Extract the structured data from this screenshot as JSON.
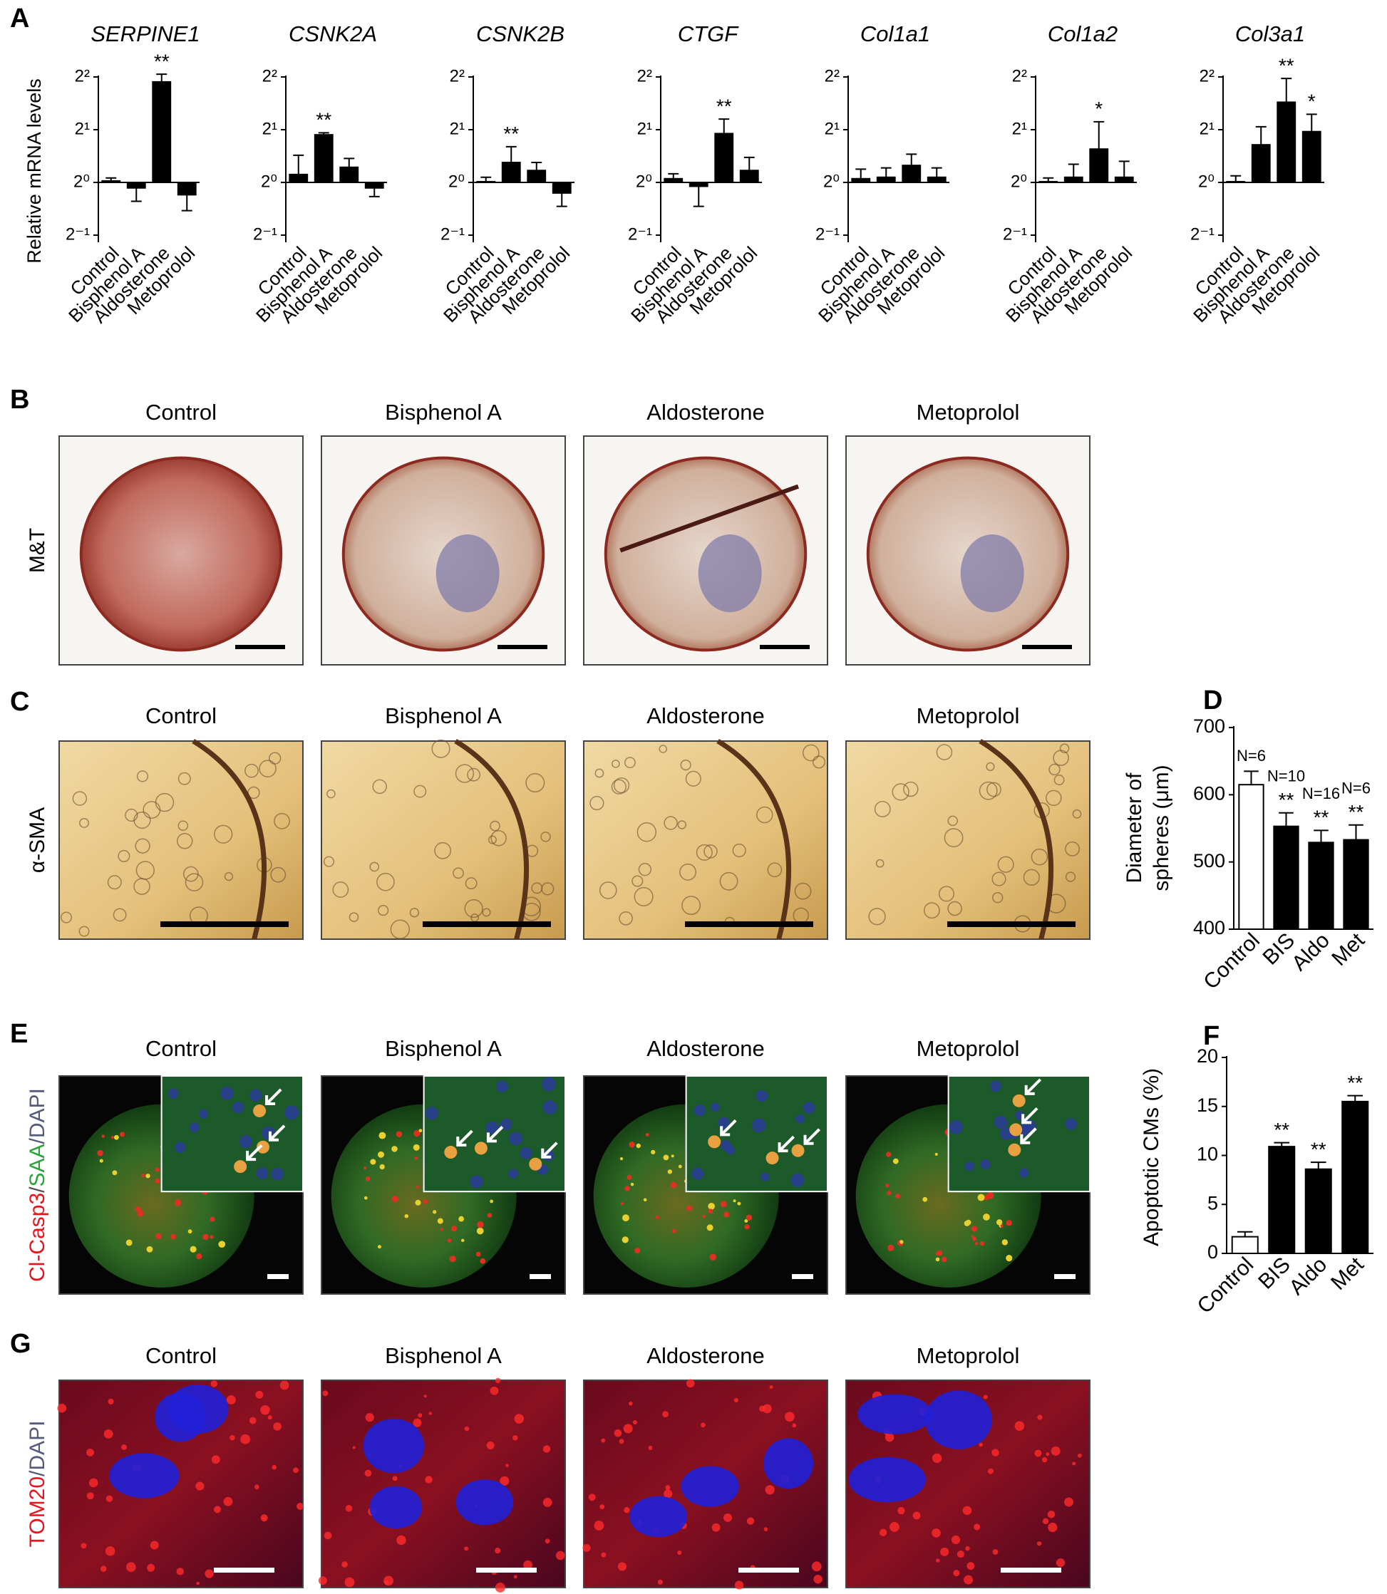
{
  "chart_data": [
    {
      "type": "bar",
      "panel": "A",
      "title": "SERPINE1",
      "ylabel": "Relative mRNA levels",
      "log_base": 2,
      "color": "#000000",
      "categories": [
        "Control",
        "Bisphenol A",
        "Aldosterone",
        "Metoprolol"
      ],
      "values": [
        1.02,
        0.93,
        3.75,
        0.85
      ],
      "errors": [
        0.04,
        0.15,
        0.4,
        0.16
      ],
      "annotations": [
        null,
        null,
        "**",
        null
      ],
      "ylim": [
        0.5,
        4
      ],
      "yticks": [
        {
          "value": 4,
          "label": "2²"
        },
        {
          "value": 2,
          "label": "2¹"
        },
        {
          "value": 1,
          "label": "2⁰"
        },
        {
          "value": 0.5,
          "label": "2⁻¹"
        }
      ]
    },
    {
      "type": "bar",
      "title": "CSNK2A",
      "log_base": 2,
      "color": "#000000",
      "categories": [
        "Control",
        "Bisphenol A",
        "Aldosterone",
        "Metoprolol"
      ],
      "values": [
        1.11,
        1.87,
        1.22,
        0.93
      ],
      "errors": [
        0.32,
        0.05,
        0.15,
        0.1
      ],
      "annotations": [
        null,
        "**",
        null,
        null
      ],
      "ylim": [
        0.5,
        4
      ],
      "yticks": [
        {
          "value": 4,
          "label": "2²"
        },
        {
          "value": 2,
          "label": "2¹"
        },
        {
          "value": 1,
          "label": "2⁰"
        },
        {
          "value": 0.5,
          "label": "2⁻¹"
        }
      ]
    },
    {
      "type": "bar",
      "title": "CSNK2B",
      "log_base": 2,
      "color": "#000000",
      "categories": [
        "Control",
        "Bisphenol A",
        "Aldosterone",
        "Metoprolol"
      ],
      "values": [
        1.01,
        1.3,
        1.17,
        0.87
      ],
      "errors": [
        0.06,
        0.3,
        0.13,
        0.14
      ],
      "annotations": [
        null,
        "**",
        null,
        null
      ],
      "ylim": [
        0.5,
        4
      ],
      "yticks": [
        {
          "value": 4,
          "label": "2²"
        },
        {
          "value": 2,
          "label": "2¹"
        },
        {
          "value": 1,
          "label": "2⁰"
        },
        {
          "value": 0.5,
          "label": "2⁻¹"
        }
      ]
    },
    {
      "type": "bar",
      "title": "CTGF",
      "log_base": 2,
      "color": "#000000",
      "categories": [
        "Control",
        "Bisphenol A",
        "Aldosterone",
        "Metoprolol"
      ],
      "values": [
        1.05,
        0.95,
        1.9,
        1.17
      ],
      "errors": [
        0.07,
        0.22,
        0.4,
        0.22
      ],
      "annotations": [
        null,
        null,
        "**",
        null
      ],
      "ylim": [
        0.5,
        4
      ],
      "yticks": [
        {
          "value": 4,
          "label": "2²"
        },
        {
          "value": 2,
          "label": "2¹"
        },
        {
          "value": 1,
          "label": "2⁰"
        },
        {
          "value": 0.5,
          "label": "2⁻¹"
        }
      ]
    },
    {
      "type": "bar",
      "title": "Col1a1",
      "log_base": 2,
      "color": "#000000",
      "categories": [
        "Control",
        "Bisphenol A",
        "Aldosterone",
        "Metoprolol"
      ],
      "values": [
        1.05,
        1.07,
        1.25,
        1.07
      ],
      "errors": [
        0.14,
        0.14,
        0.2,
        0.14
      ],
      "annotations": [
        null,
        null,
        null,
        null
      ],
      "ylim": [
        0.5,
        4
      ],
      "yticks": [
        {
          "value": 4,
          "label": "2²"
        },
        {
          "value": 2,
          "label": "2¹"
        },
        {
          "value": 1,
          "label": "2⁰"
        },
        {
          "value": 0.5,
          "label": "2⁻¹"
        }
      ]
    },
    {
      "type": "bar",
      "title": "Col1a2",
      "log_base": 2,
      "color": "#000000",
      "categories": [
        "Control",
        "Bisphenol A",
        "Aldosterone",
        "Metoprolol"
      ],
      "values": [
        1.01,
        1.07,
        1.55,
        1.07
      ],
      "errors": [
        0.05,
        0.2,
        0.67,
        0.25
      ],
      "annotations": [
        null,
        null,
        "*",
        null
      ],
      "ylim": [
        0.5,
        4
      ],
      "yticks": [
        {
          "value": 4,
          "label": "2²"
        },
        {
          "value": 2,
          "label": "2¹"
        },
        {
          "value": 1,
          "label": "2⁰"
        },
        {
          "value": 0.5,
          "label": "2⁻¹"
        }
      ]
    },
    {
      "type": "bar",
      "title": "Col3a1",
      "log_base": 2,
      "color": "#000000",
      "categories": [
        "Control",
        "Bisphenol A",
        "Aldosterone",
        "Metoprolol"
      ],
      "values": [
        1.01,
        1.64,
        2.87,
        1.95
      ],
      "errors": [
        0.08,
        0.44,
        1.05,
        0.5
      ],
      "annotations": [
        null,
        null,
        "**",
        "*"
      ],
      "ylim": [
        0.5,
        4
      ],
      "yticks": [
        {
          "value": 4,
          "label": "2²"
        },
        {
          "value": 2,
          "label": "2¹"
        },
        {
          "value": 1,
          "label": "2⁰"
        },
        {
          "value": 0.5,
          "label": "2⁻¹"
        }
      ]
    },
    {
      "type": "bar",
      "panel": "D",
      "ylabel": [
        "Diameter of",
        "spheres (μm)"
      ],
      "categories": [
        "Control",
        "BIS",
        "Aldo",
        "Met"
      ],
      "values": [
        615,
        553,
        529,
        533
      ],
      "errors": [
        20,
        20,
        18,
        22
      ],
      "colors": [
        "#ffffff",
        "#000000",
        "#000000",
        "#000000"
      ],
      "annotations": [
        null,
        "**",
        "**",
        "**"
      ],
      "n_labels": [
        "N=6",
        "N=10",
        "N=16",
        "N=6"
      ],
      "ylim": [
        400,
        700
      ],
      "yticks": [
        400,
        500,
        600,
        700
      ]
    },
    {
      "type": "bar",
      "panel": "F",
      "ylabel": "Apoptotic CMs (%)",
      "categories": [
        "Control",
        "BIS",
        "Aldo",
        "Met"
      ],
      "values": [
        1.7,
        10.9,
        8.6,
        15.5
      ],
      "errors": [
        0.5,
        0.4,
        0.7,
        0.6
      ],
      "colors": [
        "#ffffff",
        "#000000",
        "#000000",
        "#000000"
      ],
      "annotations": [
        null,
        "**",
        "**",
        "**"
      ],
      "ylim": [
        0,
        20
      ],
      "yticks": [
        0,
        5,
        10,
        15,
        20
      ]
    }
  ],
  "image_panels": [
    {
      "panel": "B",
      "stain": [
        {
          "text": "M&T",
          "color": "#000000"
        }
      ],
      "columns": [
        "Control",
        "Bisphenol A",
        "Aldosterone",
        "Metoprolol"
      ]
    },
    {
      "panel": "C",
      "stain": [
        {
          "text": "α-SMA",
          "color": "#000000"
        }
      ],
      "columns": [
        "Control",
        "Bisphenol A",
        "Aldosterone",
        "Metoprolol"
      ]
    },
    {
      "panel": "E",
      "stain": [
        {
          "text": "Cl-Casp3",
          "color": "#e8141b"
        },
        {
          "text": "/",
          "color": "#555555"
        },
        {
          "text": "SAA",
          "color": "#2aa33a"
        },
        {
          "text": "/DAPI",
          "color": "#555a7a"
        }
      ],
      "columns": [
        "Control",
        "Bisphenol A",
        "Aldosterone",
        "Metoprolol"
      ]
    },
    {
      "panel": "G",
      "stain": [
        {
          "text": "TOM20",
          "color": "#e8141b"
        },
        {
          "text": "/DAPI",
          "color": "#555a7a"
        }
      ],
      "columns": [
        "Control",
        "Bisphenol A",
        "Aldosterone",
        "Metoprolol"
      ]
    }
  ]
}
